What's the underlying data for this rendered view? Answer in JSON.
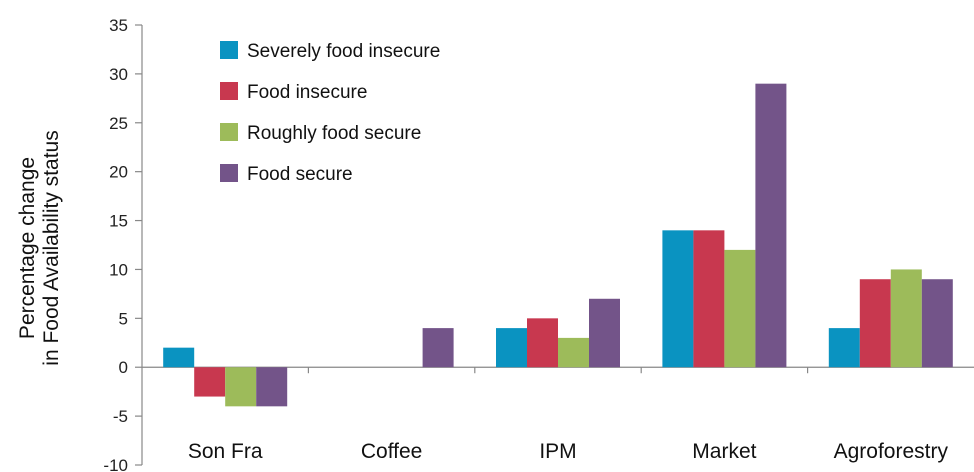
{
  "chart_data": {
    "type": "bar",
    "ylabel_line1": "Percentage change",
    "ylabel_line2": "in Food Availability status",
    "xlabel": "",
    "ylim": [
      -10,
      35
    ],
    "yticks": [
      35,
      30,
      25,
      20,
      15,
      10,
      5,
      0,
      -5,
      -10
    ],
    "ytick_labels": [
      "35",
      "30",
      "25",
      "20",
      "15",
      "10",
      "5",
      "0",
      "-5",
      "-10"
    ],
    "categories": [
      "Son Fra",
      "Coffee",
      "IPM",
      "Market",
      "Agroforestry"
    ],
    "series": [
      {
        "name": "Severely food insecure",
        "color": "#0a93c1",
        "values": [
          2,
          0,
          4,
          14,
          4
        ]
      },
      {
        "name": "Food insecure",
        "color": "#c8384f",
        "values": [
          -3,
          0,
          5,
          14,
          9
        ]
      },
      {
        "name": "Roughly food secure",
        "color": "#9dbb5a",
        "values": [
          -4,
          0,
          3,
          12,
          10
        ]
      },
      {
        "name": "Food secure",
        "color": "#735489",
        "values": [
          -4,
          4,
          7,
          29,
          9
        ]
      }
    ],
    "legend_position": "top-left",
    "grid": false,
    "axis_color": "#888888"
  }
}
